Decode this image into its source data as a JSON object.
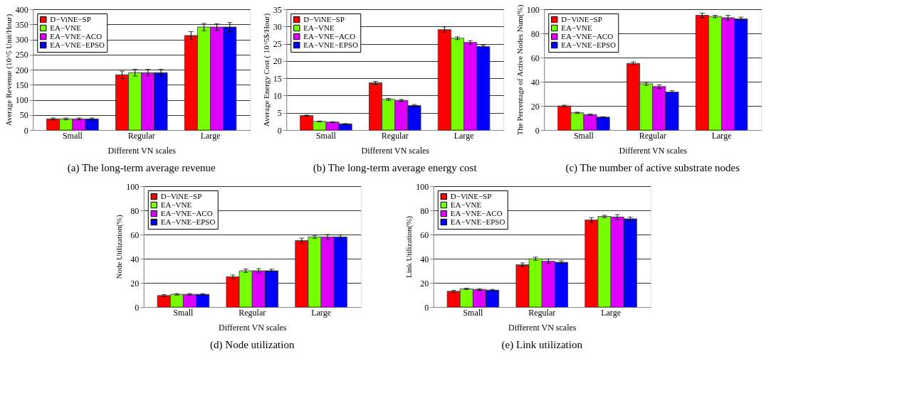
{
  "chart_data": [
    {
      "type": "bar",
      "title": "(a)  The long-term average revenue",
      "xlabel": "Different VN scales",
      "ylabel": "Average Revenue (10^5 Unit/Hour)",
      "categories": [
        "Small",
        "Regular",
        "Large"
      ],
      "ylim": [
        0,
        400
      ],
      "yticks": [
        0,
        50,
        100,
        150,
        200,
        250,
        300,
        350,
        400
      ],
      "grid": "y",
      "legend": "top left",
      "series": [
        {
          "name": "D−ViNE−SP",
          "color": "#ff0000",
          "values": [
            37,
            183,
            313
          ],
          "errors": [
            3,
            12,
            13
          ]
        },
        {
          "name": "EA−VNE",
          "color": "#77ff00",
          "values": [
            37,
            190,
            341
          ],
          "errors": [
            3,
            11,
            12
          ]
        },
        {
          "name": "EA−VNE−ACO",
          "color": "#dd00ff",
          "values": [
            37,
            190,
            341
          ],
          "errors": [
            3,
            11,
            11
          ]
        },
        {
          "name": "EA−VNE−EPSO",
          "color": "#0000ff",
          "values": [
            37,
            190,
            341
          ],
          "errors": [
            3,
            11,
            15
          ]
        }
      ]
    },
    {
      "type": "bar",
      "title": "(b)  The long-term average energy cost",
      "xlabel": "Different VN scales",
      "ylabel": "Average Energy Cost ( 10^5$/Hour)",
      "categories": [
        "Small",
        "Regular",
        "Large"
      ],
      "ylim": [
        0,
        35
      ],
      "yticks": [
        0,
        5,
        10,
        15,
        20,
        25,
        30,
        35
      ],
      "grid": "y",
      "legend": "top left",
      "series": [
        {
          "name": "D−ViNE−SP",
          "color": "#ff0000",
          "values": [
            4.2,
            13.7,
            29.1
          ],
          "errors": [
            0.15,
            0.4,
            0.8
          ]
        },
        {
          "name": "EA−VNE",
          "color": "#77ff00",
          "values": [
            2.5,
            8.9,
            26.6
          ],
          "errors": [
            0.1,
            0.3,
            0.4
          ]
        },
        {
          "name": "EA−VNE−ACO",
          "color": "#dd00ff",
          "values": [
            2.3,
            8.6,
            25.4
          ],
          "errors": [
            0.1,
            0.3,
            0.5
          ]
        },
        {
          "name": "EA−VNE−EPSO",
          "color": "#0000ff",
          "values": [
            1.8,
            7.1,
            24.2
          ],
          "errors": [
            0.05,
            0.3,
            0.4
          ]
        }
      ]
    },
    {
      "type": "bar",
      "title": "(c)  The number of active substrate nodes",
      "xlabel": "Different VN scales",
      "ylabel": "The Percentage of Active Nodes Num(%)",
      "categories": [
        "Small",
        "Regular",
        "Large"
      ],
      "ylim": [
        0,
        100
      ],
      "yticks": [
        0,
        20,
        40,
        60,
        80,
        100
      ],
      "grid": "y",
      "legend": "top left",
      "series": [
        {
          "name": "D−ViNE−SP",
          "color": "#ff0000",
          "values": [
            20,
            55.2,
            95
          ],
          "errors": [
            0.6,
            1.3,
            1.8
          ]
        },
        {
          "name": "EA−VNE",
          "color": "#77ff00",
          "values": [
            14.3,
            38.3,
            94
          ],
          "errors": [
            0.5,
            1.3,
            1
          ]
        },
        {
          "name": "EA−VNE−ACO",
          "color": "#dd00ff",
          "values": [
            12.8,
            36,
            93
          ],
          "errors": [
            0.5,
            1.5,
            2
          ]
        },
        {
          "name": "EA−VNE−EPSO",
          "color": "#0000ff",
          "values": [
            10.7,
            31.5,
            92
          ],
          "errors": [
            0.4,
            1.2,
            1.5
          ]
        }
      ]
    },
    {
      "type": "bar",
      "title": "(d)  Node utilization",
      "xlabel": "Different VN scales",
      "ylabel": "Node Utilization(%)",
      "categories": [
        "Small",
        "Regular",
        "Large"
      ],
      "ylim": [
        0,
        100
      ],
      "yticks": [
        0,
        20,
        40,
        60,
        80,
        100
      ],
      "grid": "y",
      "legend": "top left",
      "series": [
        {
          "name": "D−ViNE−SP",
          "color": "#ff0000",
          "values": [
            9.5,
            25,
            55
          ],
          "errors": [
            0.8,
            1.5,
            2
          ]
        },
        {
          "name": "EA−VNE",
          "color": "#77ff00",
          "values": [
            10.5,
            30,
            58
          ],
          "errors": [
            0.6,
            1.5,
            1.3
          ]
        },
        {
          "name": "EA−VNE−ACO",
          "color": "#dd00ff",
          "values": [
            10.5,
            30,
            58
          ],
          "errors": [
            0.6,
            1.8,
            2
          ]
        },
        {
          "name": "EA−VNE−EPSO",
          "color": "#0000ff",
          "values": [
            10.5,
            30,
            58
          ],
          "errors": [
            0.6,
            1.3,
            1.6
          ]
        }
      ]
    },
    {
      "type": "bar",
      "title": "(e)  Link utilization",
      "xlabel": "Different VN scales",
      "ylabel": "Link Utilization(%)",
      "categories": [
        "Small",
        "Regular",
        "Large"
      ],
      "ylim": [
        0,
        100
      ],
      "yticks": [
        0,
        20,
        40,
        60,
        80,
        100
      ],
      "grid": "y",
      "legend": "top left",
      "series": [
        {
          "name": "D−ViNE−SP",
          "color": "#ff0000",
          "values": [
            13,
            35,
            72
          ],
          "errors": [
            0.8,
            1.5,
            2
          ]
        },
        {
          "name": "EA−VNE",
          "color": "#77ff00",
          "values": [
            15,
            40,
            75
          ],
          "errors": [
            0.6,
            1.3,
            1
          ]
        },
        {
          "name": "EA−VNE−ACO",
          "color": "#dd00ff",
          "values": [
            14.5,
            38,
            74.5
          ],
          "errors": [
            0.6,
            1.8,
            2
          ]
        },
        {
          "name": "EA−VNE−EPSO",
          "color": "#0000ff",
          "values": [
            14,
            37,
            73
          ],
          "errors": [
            0.6,
            1.3,
            1.5
          ]
        }
      ]
    }
  ]
}
